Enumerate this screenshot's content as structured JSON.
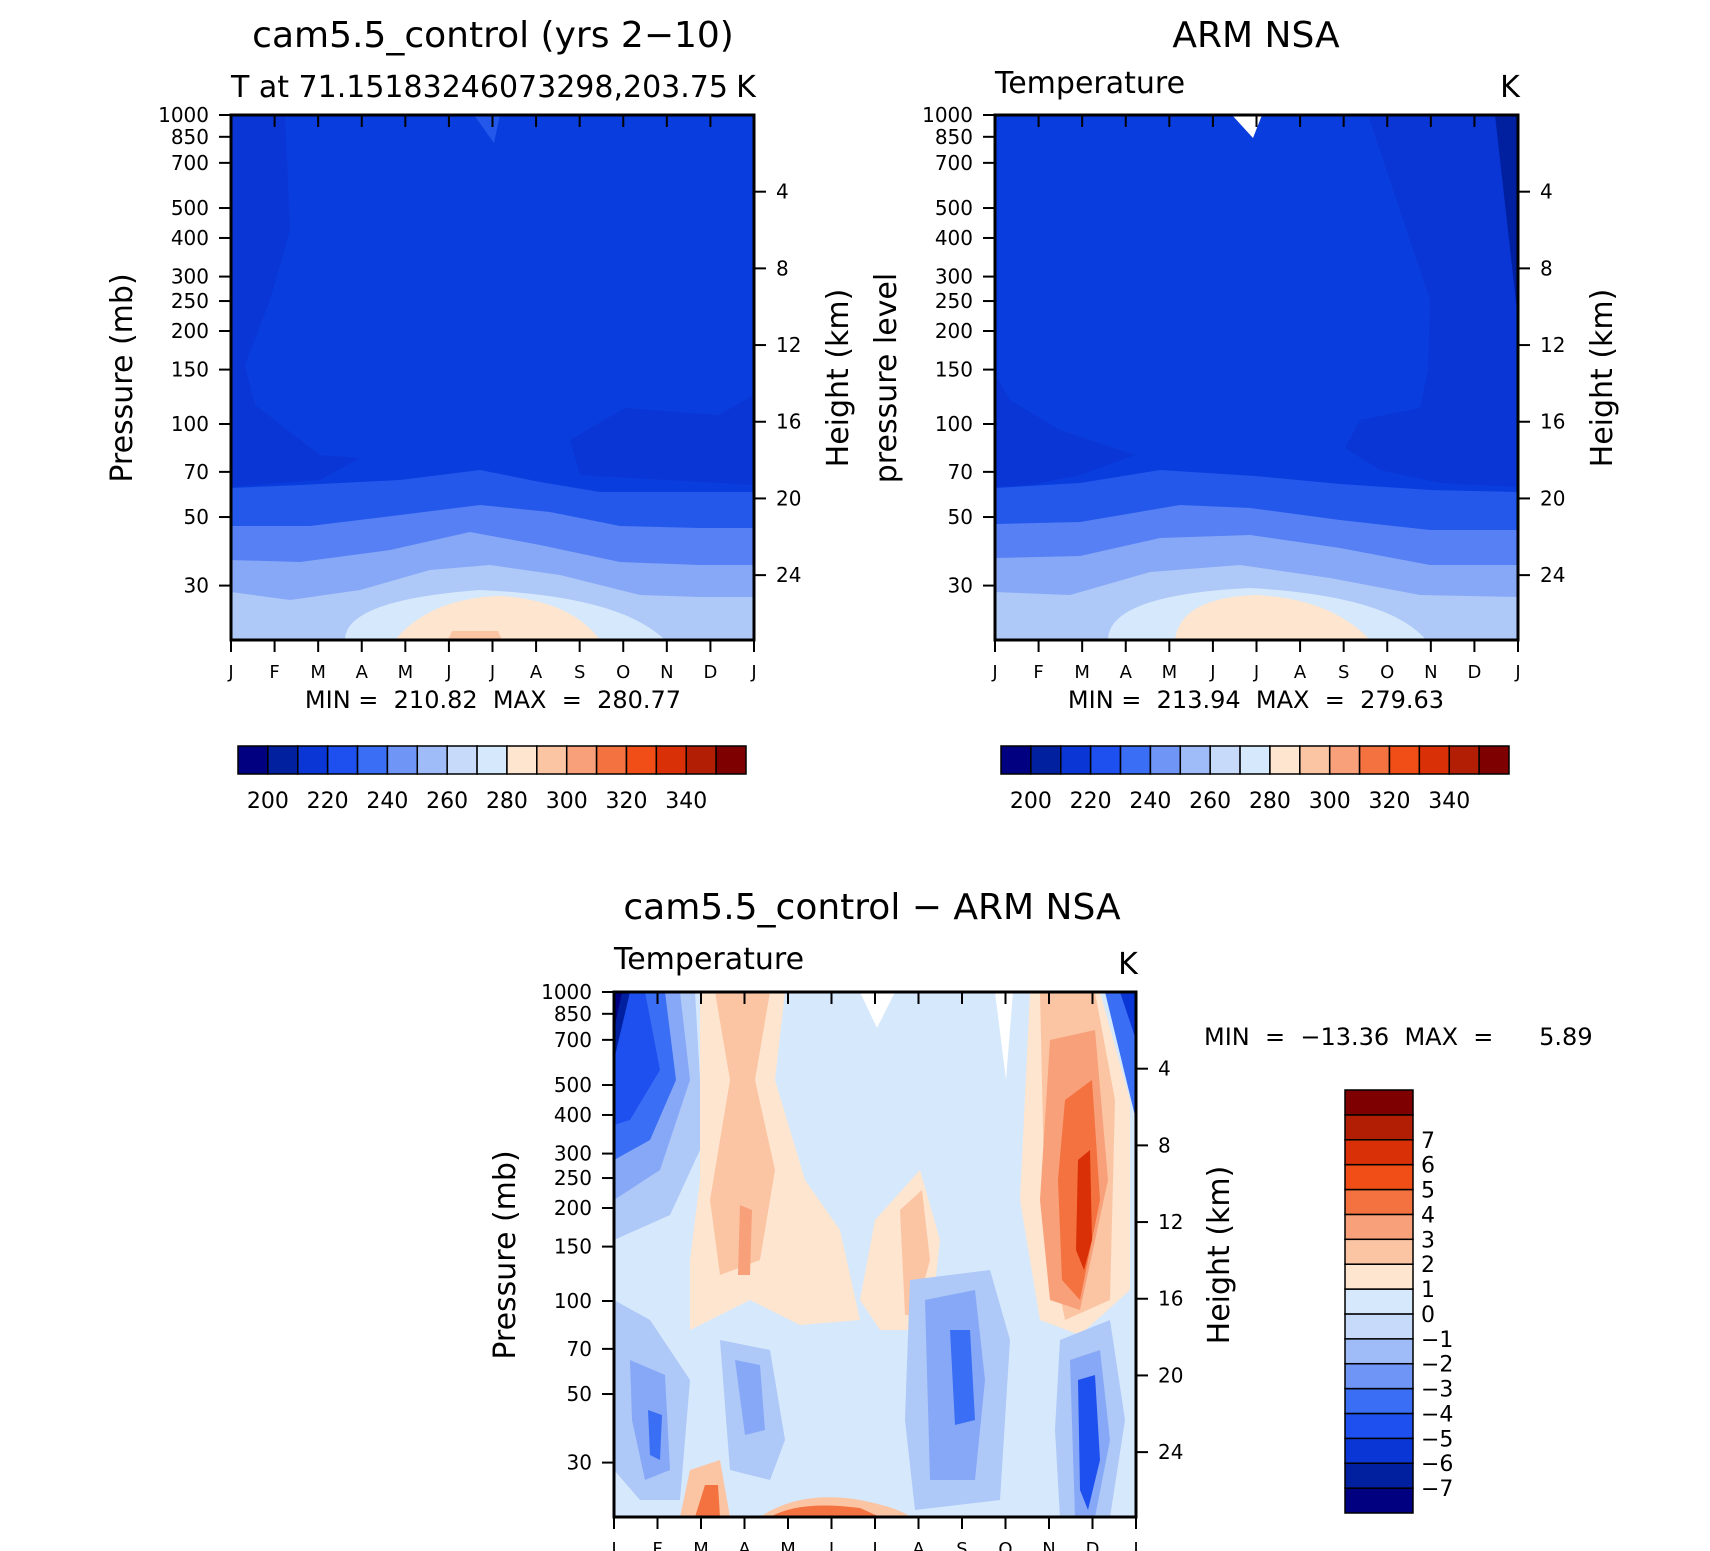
{
  "chart_data": [
    {
      "type": "heatmap",
      "title": "cam5.5_control (yrs 2−10)",
      "subtitle": "T at 71.15183246073298,203.75",
      "corner_label": "K",
      "ylabel": "Pressure (mb)",
      "ylabel_right": "Height (km)",
      "x_ticks": [
        "J",
        "F",
        "M",
        "A",
        "M",
        "J",
        "J",
        "A",
        "S",
        "O",
        "N",
        "D",
        "J"
      ],
      "y_ticks": [
        30,
        50,
        70,
        100,
        150,
        200,
        250,
        300,
        400,
        500,
        700,
        850,
        1000
      ],
      "y_ticks_right": [
        24,
        20,
        16,
        12,
        8,
        4
      ],
      "ylim": [
        1000,
        20
      ],
      "stats_text": "MIN =  210.82  MAX  =  280.77",
      "min": 210.82,
      "max": 280.77,
      "colorbar": {
        "orientation": "horizontal",
        "levels": [
          200,
          210,
          220,
          230,
          240,
          250,
          260,
          270,
          280,
          290,
          300,
          310,
          320,
          330,
          340
        ],
        "labels": [
          "200",
          "220",
          "240",
          "260",
          "280",
          "300",
          "320",
          "340"
        ],
        "colors": [
          "#000080",
          "#0020a0",
          "#0a36d6",
          "#1e50f0",
          "#3a6ef5",
          "#6f96f6",
          "#9fbcf8",
          "#c8daf9",
          "#d6e8fb",
          "#fde5cf",
          "#fbc5a4",
          "#f8a07a",
          "#f4723f",
          "#f04e16",
          "#d93008",
          "#b21e04",
          "#7f0000"
        ]
      },
      "bands_from_bottom": [
        {
          "level": "270-280",
          "color": "#fde5cf"
        },
        {
          "level": "260-270",
          "color": "#d6e8fb"
        },
        {
          "level": "250-260",
          "color": "#aec8f8"
        },
        {
          "level": "240-250",
          "color": "#87a8f6"
        },
        {
          "level": "230-240",
          "color": "#5680f3"
        },
        {
          "level": "220-230",
          "color": "#2358eb"
        },
        {
          "level": "210-220",
          "color": "#0a3ddd"
        }
      ]
    },
    {
      "type": "heatmap",
      "title": "ARM NSA",
      "subtitle": "Temperature",
      "corner_label": "K",
      "ylabel": "pressure level",
      "ylabel_right": "Height (km)",
      "x_ticks": [
        "J",
        "F",
        "M",
        "A",
        "M",
        "J",
        "J",
        "A",
        "S",
        "O",
        "N",
        "D",
        "J"
      ],
      "y_ticks": [
        30,
        50,
        70,
        100,
        150,
        200,
        250,
        300,
        400,
        500,
        700,
        850,
        1000
      ],
      "y_ticks_right": [
        24,
        20,
        16,
        12,
        8,
        4
      ],
      "ylim": [
        1000,
        20
      ],
      "stats_text": "MIN =  213.94  MAX  =  279.63",
      "min": 213.94,
      "max": 279.63,
      "colorbar": {
        "orientation": "horizontal",
        "levels": [
          200,
          210,
          220,
          230,
          240,
          250,
          260,
          270,
          280,
          290,
          300,
          310,
          320,
          330,
          340
        ],
        "labels": [
          "200",
          "220",
          "240",
          "260",
          "280",
          "300",
          "320",
          "340"
        ],
        "colors": [
          "#000080",
          "#0020a0",
          "#0a36d6",
          "#1e50f0",
          "#3a6ef5",
          "#6f96f6",
          "#9fbcf8",
          "#c8daf9",
          "#d6e8fb",
          "#fde5cf",
          "#fbc5a4",
          "#f8a07a",
          "#f4723f",
          "#f04e16",
          "#d93008",
          "#b21e04",
          "#7f0000"
        ]
      }
    },
    {
      "type": "heatmap",
      "title": "cam5.5_control − ARM NSA",
      "subtitle": "Temperature",
      "corner_label": "K",
      "ylabel": "Pressure (mb)",
      "ylabel_right": "Height (km)",
      "x_ticks": [
        "J",
        "F",
        "M",
        "A",
        "M",
        "J",
        "J",
        "A",
        "S",
        "O",
        "N",
        "D",
        "J"
      ],
      "y_ticks": [
        30,
        50,
        70,
        100,
        150,
        200,
        250,
        300,
        400,
        500,
        700,
        850,
        1000
      ],
      "y_ticks_right": [
        24,
        20,
        16,
        12,
        8,
        4
      ],
      "ylim": [
        1000,
        20
      ],
      "stats_text": "MIN  =  −13.36  MAX  =      5.89",
      "min": -13.36,
      "max": 5.89,
      "colorbar": {
        "orientation": "vertical",
        "levels": [
          -7,
          -6,
          -5,
          -4,
          -3,
          -2,
          -1,
          0,
          1,
          2,
          3,
          4,
          5,
          6,
          7
        ],
        "labels": [
          "−7",
          "−6",
          "−5",
          "−4",
          "−3",
          "−2",
          "−1",
          "0",
          "1",
          "2",
          "3",
          "4",
          "5",
          "6",
          "7"
        ],
        "colors": [
          "#000080",
          "#0020a0",
          "#0a36d6",
          "#1e50f0",
          "#3a6ef5",
          "#6f96f6",
          "#9fbcf8",
          "#c8daf9",
          "#d6e8fb",
          "#fde5cf",
          "#fbc5a4",
          "#f8a07a",
          "#f4723f",
          "#f04e16",
          "#d93008",
          "#b21e04",
          "#7f0000"
        ]
      }
    }
  ]
}
